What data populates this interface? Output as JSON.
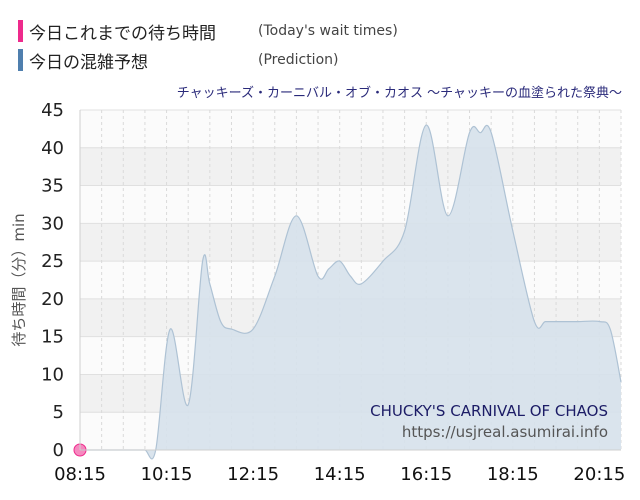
{
  "legend": [
    {
      "jp": "今日これまでの待ち時間",
      "en": "(Today's wait times)",
      "color": "#ee2a8c"
    },
    {
      "jp": "今日の混雑予想",
      "en": "(Prediction)",
      "color": "#4f7fae"
    }
  ],
  "chart_data": {
    "type": "area",
    "title": "チャッキーズ・カーニバル・オブ・カオス ～チャッキーの血塗られた祭典～",
    "ylabel": "待ち時間（分）min",
    "xlabel": "",
    "ylim": [
      0,
      45
    ],
    "yticks": [
      "0",
      "5",
      "10",
      "15",
      "20",
      "25",
      "30",
      "35",
      "40",
      "45"
    ],
    "xtick_labels": [
      "08:15",
      "10:15",
      "12:15",
      "14:15",
      "16:15",
      "18:15",
      "20:15"
    ],
    "grid": true,
    "series": [
      {
        "name": "今日の混雑予想",
        "color": "#4f7fae",
        "x": [
          "08:15",
          "09:00",
          "09:30",
          "09:45",
          "10:00",
          "10:20",
          "10:45",
          "11:05",
          "11:15",
          "11:30",
          "11:45",
          "12:15",
          "12:45",
          "13:15",
          "13:45",
          "14:00",
          "14:15",
          "14:30",
          "14:45",
          "15:15",
          "15:45",
          "16:15",
          "16:45",
          "17:15",
          "17:30",
          "17:45",
          "18:15",
          "18:45",
          "19:00",
          "19:15",
          "19:45",
          "20:15",
          "20:30",
          "20:45"
        ],
        "values": [
          0,
          0,
          0,
          0,
          0,
          16,
          6,
          25,
          22,
          17,
          16,
          16,
          23,
          31,
          23,
          24,
          25,
          23,
          22,
          25,
          29,
          43,
          31,
          42,
          42,
          42,
          29,
          17,
          17,
          17,
          17,
          17,
          16,
          9
        ]
      },
      {
        "name": "今日これまでの待ち時間",
        "color": "#ee2a8c",
        "x": [
          "08:15"
        ],
        "values": [
          0
        ]
      }
    ]
  },
  "watermark": {
    "ride_name": "CHUCKY'S CARNIVAL OF CHAOS",
    "url": "https://usjreal.asumirai.info"
  }
}
